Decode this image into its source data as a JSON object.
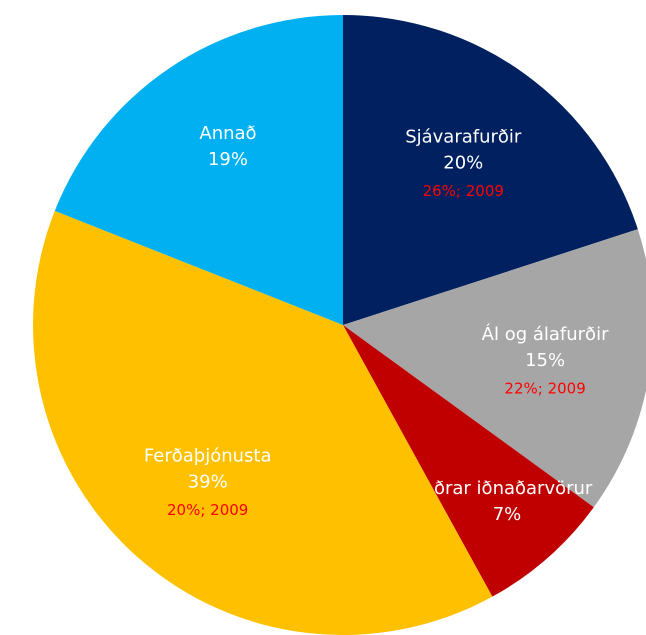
{
  "chart_data": {
    "type": "pie",
    "categories": [
      "Sjávarafurðir",
      "Ál og álafurðir",
      "Aðrar iðnaðarvörur",
      "Ferðaþjónusta",
      "Annað"
    ],
    "values": [
      20,
      15,
      7,
      39,
      19
    ],
    "value_labels": [
      "20%",
      "15%",
      "7%",
      "39%",
      "19%"
    ],
    "annotations": [
      "26%; 2009",
      "22%; 2009",
      null,
      "20%; 2009",
      null
    ],
    "colors": [
      "#002060",
      "#a6a6a6",
      "#c00000",
      "#ffc000",
      "#00b0f0"
    ]
  }
}
